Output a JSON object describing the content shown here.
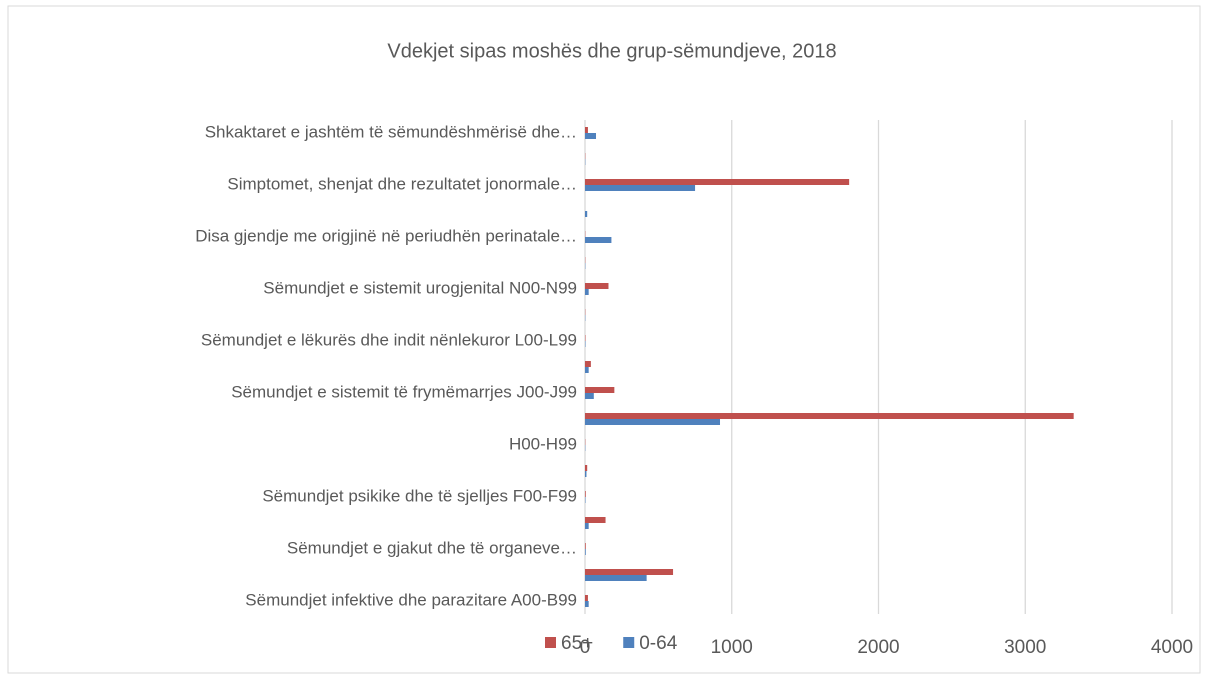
{
  "chart_data": {
    "type": "hbar",
    "title": "Vdekjet sipas moshës dhe grup-sëmundjeve, 2018",
    "categories": [
      "Sëmundjet infektive dhe parazitare A00-B99",
      null,
      "Sëmundjet e gjakut dhe të organeve…",
      null,
      "Sëmundjet psikike dhe të sjelljes F00-F99",
      null,
      "H00-H99",
      null,
      "Sëmundjet e sistemit të frymëmarrjes J00-J99",
      null,
      "Sëmundjet e lëkurës dhe indit nënlekuror L00-L99",
      null,
      "Sëmundjet e sistemit urogjenital N00-N99",
      null,
      "Disa gjendje me origjinë në periudhën perinatale…",
      null,
      "Simptomet, shenjat dhe rezultatet jonormale…",
      null,
      "Shkaktaret e jashtëm të sëmundëshmërisë dhe…"
    ],
    "series": [
      {
        "name": "65+",
        "color": "#c0504d",
        "values": [
          20,
          600,
          5,
          140,
          5,
          15,
          2,
          3330,
          200,
          40,
          3,
          2,
          160,
          2,
          2,
          0,
          1800,
          2,
          20
        ]
      },
      {
        "name": "0-64",
        "color": "#4f81bd",
        "values": [
          25,
          420,
          5,
          25,
          3,
          10,
          2,
          920,
          60,
          25,
          3,
          2,
          25,
          2,
          180,
          15,
          750,
          2,
          75
        ]
      }
    ],
    "xlim": [
      0,
      4000
    ],
    "xticks": [
      0,
      1000,
      2000,
      3000,
      4000
    ],
    "grid": true,
    "legend": "bottom"
  }
}
